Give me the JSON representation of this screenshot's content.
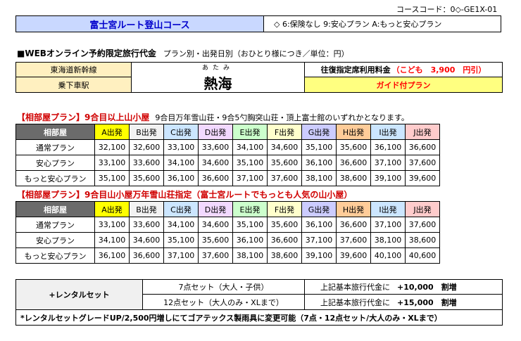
{
  "header": {
    "course_code": "コースコード：0◇-GE1X-01",
    "title": "富士宮ルート登山コース",
    "insurance_legend": "◇ 6:保険なし 9:安心プラン A:もっと安心プラン"
  },
  "section": {
    "heading": "■WEBオンライン予約限定旅行代金",
    "subheading": "プラン別・出発日別（おひとり様につき／単位：円）"
  },
  "route": {
    "train": "東海道新幹線",
    "station_label": "乗下車駅",
    "station_reading": "あたみ",
    "station": "熱海",
    "fare_label": "往復指定席利用料金",
    "child_discount": "（こども　3,900　円引）",
    "guide_plan": "ガイド付プラン"
  },
  "columns": [
    "A出発",
    "B出発",
    "C出発",
    "D出発",
    "E出発",
    "F出発",
    "G出発",
    "H出発",
    "I出発",
    "J出発"
  ],
  "column_colors": [
    "#ffff00",
    "#f2f2f2",
    "#cce6ff",
    "#f2d9ff",
    "#ccffcc",
    "#ffffcc",
    "#ccccff",
    "#ffcc99",
    "#cce6ff",
    "#ffcccc"
  ],
  "plans": [
    {
      "heading": "【相部屋プラン】9合目以上山小屋",
      "note": "9合目万年雪山荘・9合5勺胸突山荘・頂上富士館のいずれかとなります。",
      "header_label": "相部屋",
      "rows": [
        {
          "label": "通常プラン",
          "values": [
            "32,100",
            "32,600",
            "33,100",
            "33,600",
            "34,100",
            "34,600",
            "35,100",
            "35,600",
            "36,100",
            "36,600"
          ]
        },
        {
          "label": "安心プラン",
          "values": [
            "33,100",
            "33,600",
            "34,100",
            "34,600",
            "35,100",
            "35,600",
            "36,100",
            "36,600",
            "37,100",
            "37,600"
          ]
        },
        {
          "label": "もっと安心プラン",
          "values": [
            "35,100",
            "35,600",
            "36,100",
            "36,600",
            "37,100",
            "37,600",
            "38,100",
            "38,600",
            "39,100",
            "39,600"
          ]
        }
      ]
    },
    {
      "heading": "【相部屋プラン】9合目山小屋万年雪山荘指定（富士宮ルートでもっとも人気の山小屋）",
      "note": "",
      "header_label": "相部屋",
      "rows": [
        {
          "label": "通常プラン",
          "values": [
            "33,100",
            "33,600",
            "34,100",
            "34,600",
            "35,100",
            "35,600",
            "36,100",
            "36,600",
            "37,100",
            "37,600"
          ]
        },
        {
          "label": "安心プラン",
          "values": [
            "34,100",
            "34,600",
            "35,100",
            "35,600",
            "36,100",
            "36,600",
            "37,100",
            "37,600",
            "38,100",
            "38,600"
          ]
        },
        {
          "label": "もっと安心プラン",
          "values": [
            "36,100",
            "36,600",
            "37,100",
            "37,600",
            "38,100",
            "38,600",
            "39,100",
            "39,600",
            "40,100",
            "40,600"
          ]
        }
      ]
    }
  ],
  "rental": {
    "title": "+レンタルセット",
    "set1": "7点セット（大人・子供）",
    "set2": "12点セット（大人のみ・XLまで）",
    "price_prefix": "上記基本旅行代金に",
    "price1": "+10,000　割増",
    "price2": "+15,000　割増",
    "note": "*レンタルセットグレードUP/2,500円増しにてゴアテックス製雨具に変更可能（7点・12点セット/大人のみ・XLまで）"
  }
}
